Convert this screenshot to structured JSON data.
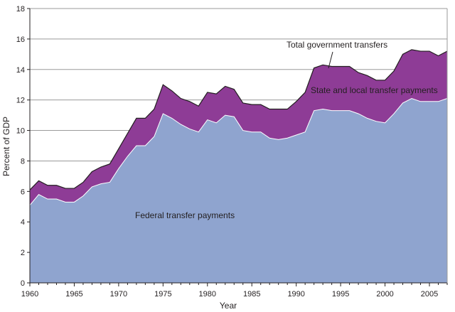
{
  "chart_data": {
    "type": "area",
    "title": "",
    "xlabel": "Year",
    "ylabel": "Percent of GDP",
    "xlim": [
      1960,
      2007
    ],
    "ylim": [
      0,
      18
    ],
    "x_ticks": [
      1960,
      1965,
      1970,
      1975,
      1980,
      1985,
      1990,
      1995,
      2000,
      2005
    ],
    "y_ticks": [
      0,
      2,
      4,
      6,
      8,
      10,
      12,
      14,
      16,
      18
    ],
    "grid": "horizontal",
    "stacking": "stacked",
    "x": [
      1960,
      1961,
      1962,
      1963,
      1964,
      1965,
      1966,
      1967,
      1968,
      1969,
      1970,
      1971,
      1972,
      1973,
      1974,
      1975,
      1976,
      1977,
      1978,
      1979,
      1980,
      1981,
      1982,
      1983,
      1984,
      1985,
      1986,
      1987,
      1988,
      1989,
      1990,
      1991,
      1992,
      1993,
      1994,
      1995,
      1996,
      1997,
      1998,
      1999,
      2000,
      2001,
      2002,
      2003,
      2004,
      2005,
      2006,
      2007
    ],
    "series": [
      {
        "name": "Federal transfer payments",
        "color": "#8fa4cf",
        "values": [
          5.1,
          5.8,
          5.5,
          5.5,
          5.3,
          5.3,
          5.7,
          6.3,
          6.5,
          6.6,
          7.5,
          8.3,
          9.0,
          9.0,
          9.6,
          11.1,
          10.8,
          10.4,
          10.1,
          9.9,
          10.7,
          10.5,
          11.0,
          10.9,
          10.0,
          9.9,
          9.9,
          9.5,
          9.4,
          9.5,
          9.7,
          9.9,
          11.3,
          11.4,
          11.3,
          11.3,
          11.3,
          11.1,
          10.8,
          10.6,
          10.5,
          11.1,
          11.8,
          12.1,
          11.9,
          11.9,
          11.9,
          12.1
        ]
      },
      {
        "name": "State and local transfer payments",
        "color": "#8e3c96",
        "values": [
          1.0,
          0.9,
          0.9,
          0.9,
          0.9,
          0.9,
          0.9,
          1.0,
          1.1,
          1.2,
          1.3,
          1.5,
          1.8,
          1.8,
          1.8,
          1.9,
          1.8,
          1.7,
          1.8,
          1.7,
          1.8,
          1.9,
          1.9,
          1.8,
          1.8,
          1.8,
          1.8,
          1.9,
          2.0,
          1.9,
          2.2,
          2.6,
          2.8,
          2.9,
          2.9,
          2.9,
          2.9,
          2.7,
          2.8,
          2.7,
          2.8,
          2.8,
          3.2,
          3.2,
          3.3,
          3.3,
          3.0,
          3.1
        ]
      }
    ],
    "total_label": "Total government transfers",
    "annotations": [
      {
        "text": "Total government transfers",
        "target_year": 1993.5,
        "target_value": 14.3
      },
      {
        "text": "State and local transfer payments",
        "target_year": 2000,
        "target_value": 11.5
      },
      {
        "text": "Federal transfer payments",
        "target_year": 1977,
        "target_value": 4.6
      }
    ]
  }
}
